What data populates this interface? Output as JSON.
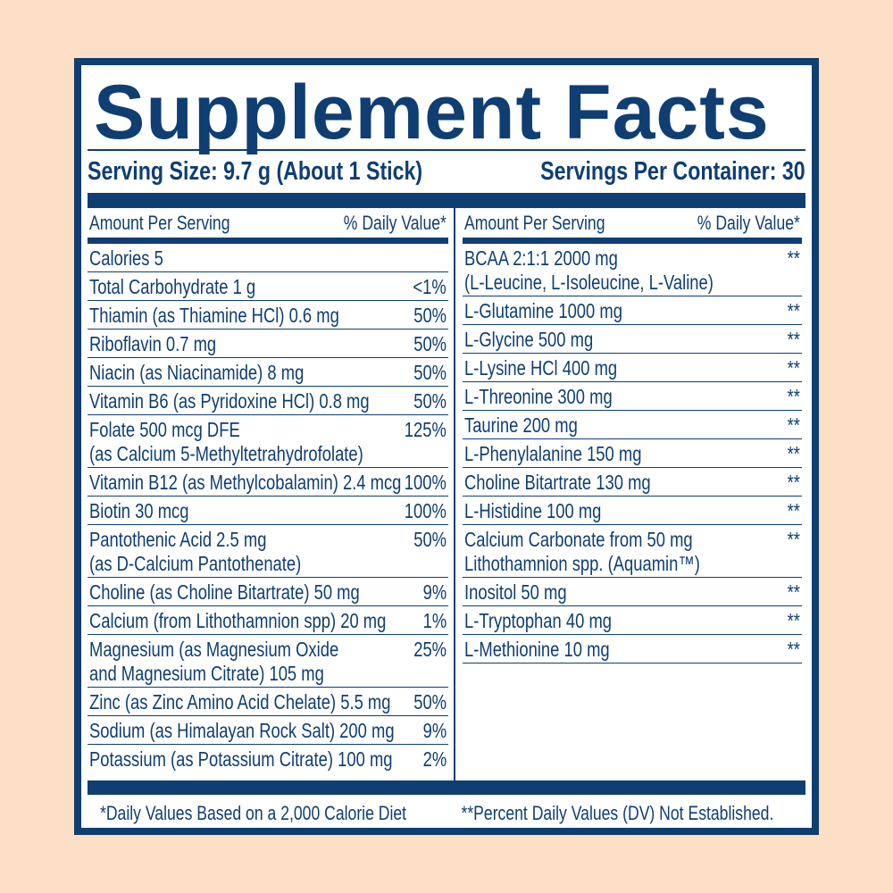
{
  "colors": {
    "background": "#FDDFC6",
    "navy": "#0F3E72",
    "panel": "#FFFFFF"
  },
  "title": "Supplement Facts",
  "serving_size": "Serving Size: 9.7 g (About 1 Stick)",
  "servings_per_container": "Servings Per Container: 30",
  "left": {
    "header_amount": "Amount Per Serving",
    "header_dv": "% Daily Value*",
    "rows": [
      {
        "name": "Calories  5",
        "dv": ""
      },
      {
        "name": "Total Carbohydrate  1 g",
        "dv": "<1%"
      },
      {
        "name": "Thiamin (as Thiamine HCl)  0.6 mg",
        "dv": "50%"
      },
      {
        "name": "Riboflavin  0.7 mg",
        "dv": "50%"
      },
      {
        "name": "Niacin (as Niacinamide)  8 mg",
        "dv": "50%"
      },
      {
        "name": "Vitamin B6 (as Pyridoxine HCl)  0.8 mg",
        "dv": "50%"
      },
      {
        "name": "Folate 500 mcg DFE",
        "name2": "(as Calcium 5-Methyltetrahydrofolate)",
        "dv": "125%"
      },
      {
        "name": "Vitamin B12 (as Methylcobalamin)  2.4 mcg",
        "dv": "100%"
      },
      {
        "name": "Biotin  30 mcg",
        "dv": "100%"
      },
      {
        "name": "Pantothenic Acid  2.5 mg",
        "name2": "(as D-Calcium Pantothenate)",
        "dv": "50%"
      },
      {
        "name": "Choline (as Choline Bitartrate)  50 mg",
        "dv": "9%"
      },
      {
        "name": "Calcium (from Lithothamnion spp)  20 mg",
        "dv": "1%"
      },
      {
        "name": "Magnesium (as Magnesium Oxide",
        "name2": "and Magnesium Citrate)  105 mg",
        "dv": "25%"
      },
      {
        "name": "Zinc (as Zinc Amino Acid Chelate)  5.5 mg",
        "dv": "50%"
      },
      {
        "name": "Sodium (as Himalayan Rock Salt)  200 mg",
        "dv": "9%"
      },
      {
        "name": "Potassium (as Potassium Citrate)  100 mg",
        "dv": "2%"
      }
    ]
  },
  "right": {
    "header_amount": "Amount Per Serving",
    "header_dv": "% Daily Value*",
    "rows": [
      {
        "name": "BCAA 2:1:1  2000 mg",
        "name2": "(L-Leucine, L-Isoleucine, L-Valine)",
        "dv": "**"
      },
      {
        "name": "L-Glutamine  1000 mg",
        "dv": "**"
      },
      {
        "name": "L-Glycine  500 mg",
        "dv": "**"
      },
      {
        "name": "L-Lysine HCl  400 mg",
        "dv": "**"
      },
      {
        "name": "L-Threonine  300 mg",
        "dv": "**"
      },
      {
        "name": "Taurine  200 mg",
        "dv": "**"
      },
      {
        "name": "L-Phenylalanine  150 mg",
        "dv": "**"
      },
      {
        "name": "Choline Bitartrate  130 mg",
        "dv": "**"
      },
      {
        "name": "L-Histidine  100 mg",
        "dv": "**"
      },
      {
        "name": "Calcium Carbonate from  50 mg",
        "name2": "Lithothamnion spp. (Aquamin™)",
        "dv": "**"
      },
      {
        "name": "Inositol 50 mg",
        "dv": "**"
      },
      {
        "name": "L-Tryptophan  40 mg",
        "dv": "**"
      },
      {
        "name": "L-Methionine  10 mg",
        "dv": "**"
      }
    ]
  },
  "footnote_1": "*Daily Values Based on a 2,000 Calorie Diet",
  "footnote_2": "**Percent Daily Values (DV) Not Established."
}
